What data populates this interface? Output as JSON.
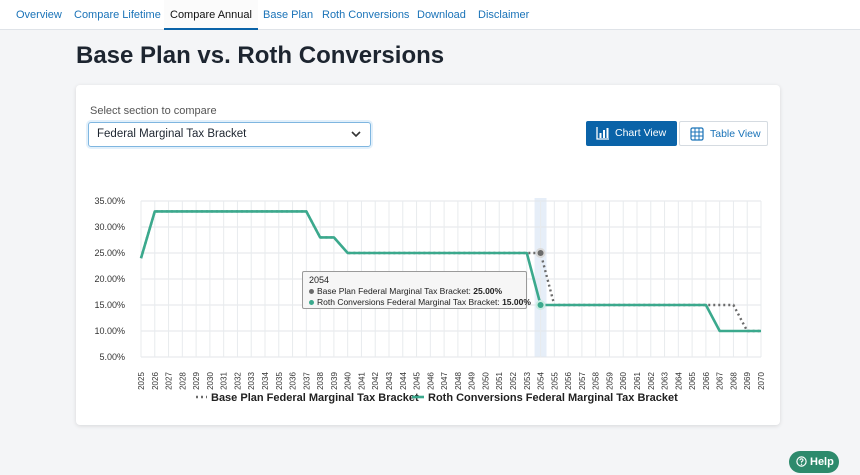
{
  "nav": {
    "tabs": [
      {
        "label": "Overview",
        "active": false
      },
      {
        "label": "Compare Lifetime",
        "active": false
      },
      {
        "label": "Compare Annual",
        "active": true
      },
      {
        "label": "Base Plan",
        "active": false
      },
      {
        "label": "Roth Conversions",
        "active": false
      },
      {
        "label": "Download",
        "active": false
      },
      {
        "label": "Disclaimer",
        "active": false
      }
    ]
  },
  "page": {
    "title": "Base Plan vs. Roth Conversions"
  },
  "controls": {
    "select_label": "Select section to compare",
    "select_value": "Federal Marginal Tax Bracket",
    "chart_view_label": "Chart View",
    "table_view_label": "Table View"
  },
  "tooltip": {
    "year": "2054",
    "base_label": "Base Plan Federal Marginal Tax Bracket:",
    "base_value": "25.00%",
    "roth_label": "Roth Conversions Federal Marginal Tax Bracket:",
    "roth_value": "15.00%"
  },
  "help": {
    "label": "Help"
  },
  "colors": {
    "accent": "#0a63a8",
    "base_series": "#6b6b6b",
    "roth_series": "#3ba98d",
    "help": "#2d8a6c"
  },
  "chart_data": {
    "type": "line",
    "ylim": [
      5,
      35
    ],
    "yticks": [
      5,
      10,
      15,
      20,
      25,
      30,
      35
    ],
    "ytick_format": "percent_2dp",
    "x": [
      2025,
      2026,
      2027,
      2028,
      2029,
      2030,
      2031,
      2032,
      2033,
      2034,
      2035,
      2036,
      2037,
      2038,
      2039,
      2040,
      2041,
      2042,
      2043,
      2044,
      2045,
      2046,
      2047,
      2048,
      2049,
      2050,
      2051,
      2052,
      2053,
      2054,
      2055,
      2056,
      2057,
      2058,
      2059,
      2060,
      2061,
      2062,
      2063,
      2064,
      2065,
      2066,
      2067,
      2068,
      2069,
      2070
    ],
    "highlight_year": 2054,
    "grid": true,
    "legend_position": "bottom",
    "series": [
      {
        "name": "Base Plan Federal Marginal Tax Bracket",
        "style": "dotted",
        "values": [
          24,
          33,
          33,
          33,
          33,
          33,
          33,
          33,
          33,
          33,
          33,
          33,
          33,
          28,
          28,
          25,
          25,
          25,
          25,
          25,
          25,
          25,
          25,
          25,
          25,
          25,
          25,
          25,
          25,
          25,
          15,
          15,
          15,
          15,
          15,
          15,
          15,
          15,
          15,
          15,
          15,
          15,
          15,
          15,
          10,
          10
        ]
      },
      {
        "name": "Roth Conversions Federal Marginal Tax Bracket",
        "style": "solid",
        "values": [
          24,
          33,
          33,
          33,
          33,
          33,
          33,
          33,
          33,
          33,
          33,
          33,
          33,
          28,
          28,
          25,
          25,
          25,
          25,
          25,
          25,
          25,
          25,
          25,
          25,
          25,
          25,
          25,
          25,
          15,
          15,
          15,
          15,
          15,
          15,
          15,
          15,
          15,
          15,
          15,
          15,
          15,
          10,
          10,
          10,
          10
        ]
      }
    ]
  }
}
